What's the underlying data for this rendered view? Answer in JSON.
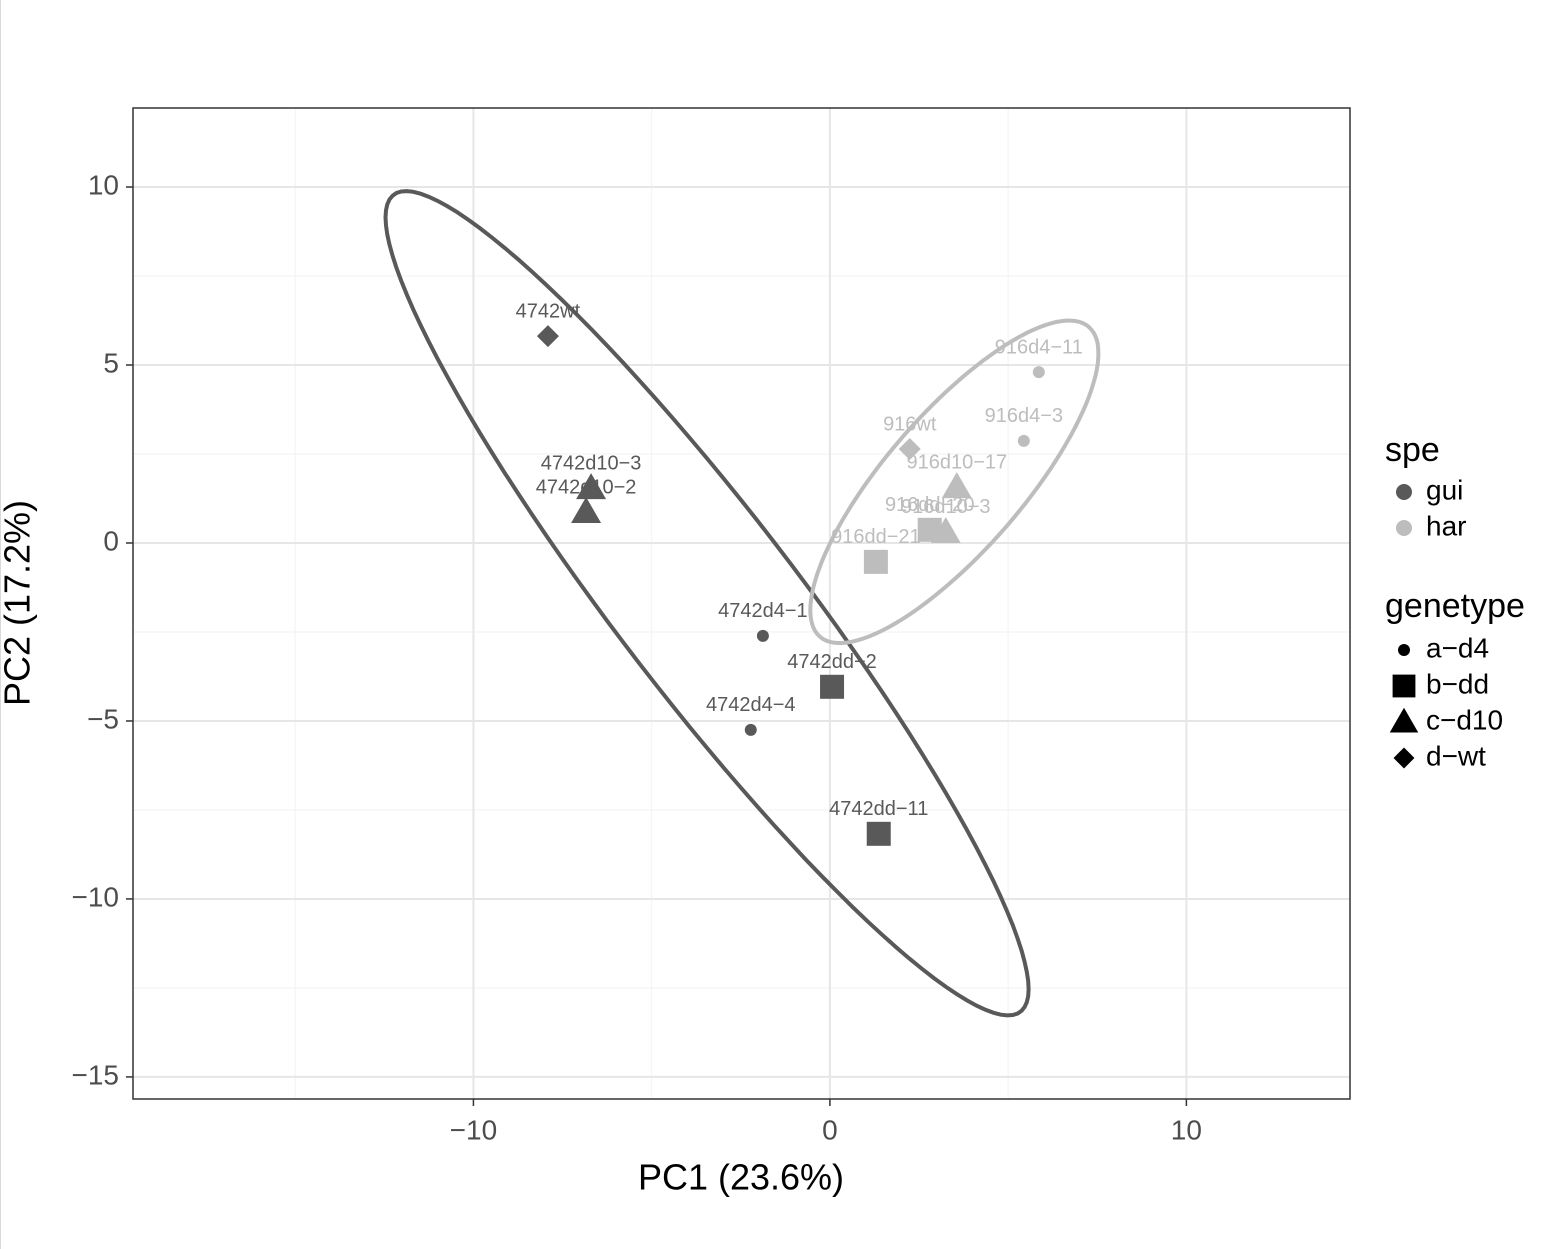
{
  "chart_data": {
    "type": "scatter",
    "x_label": "PC1 (23.6%)",
    "y_label": "PC2 (17.2%)",
    "xlim": [
      -19.55,
      14.59
    ],
    "ylim": [
      -15.62,
      12.22
    ],
    "xticks": [
      {
        "value": -10,
        "label": "−10"
      },
      0,
      10
    ],
    "yticks": [
      {
        "value": -15,
        "label": "−15"
      },
      {
        "value": -10,
        "label": "−10"
      },
      {
        "value": -5,
        "label": "−5"
      },
      0,
      5,
      10
    ],
    "grid": true,
    "ellipses": true,
    "legend_title": "spe",
    "shape_legend_title": "genetype",
    "genetypes": [
      {
        "name": "a−d4",
        "shape": "circle"
      },
      {
        "name": "b−dd",
        "shape": "square"
      },
      {
        "name": "c−d10",
        "shape": "triangle"
      },
      {
        "name": "d−wt",
        "shape": "diamond"
      }
    ],
    "series": [
      {
        "name": "gui",
        "color": "#595959",
        "points": [
          {
            "label": "4742wt",
            "x": -7.91,
            "y": 5.81,
            "genetype": "d−wt"
          },
          {
            "label": "4742d10−3",
            "x": -6.7,
            "y": 1.54,
            "genetype": "c−d10"
          },
          {
            "label": "4742d10−2",
            "x": -6.84,
            "y": 0.87,
            "genetype": "c−d10"
          },
          {
            "label": "4742d4−1",
            "x": -1.88,
            "y": -2.61,
            "genetype": "a−d4"
          },
          {
            "label": "4742dd−2",
            "x": 0.06,
            "y": -4.04,
            "genetype": "b−dd"
          },
          {
            "label": "4742d4−4",
            "x": -2.22,
            "y": -5.25,
            "genetype": "a−d4"
          },
          {
            "label": "4742dd−11",
            "x": 1.37,
            "y": -8.17,
            "genetype": "b−dd"
          }
        ]
      },
      {
        "name": "har",
        "color": "#bdbdbd",
        "points": [
          {
            "label": "916d4−11",
            "x": 5.86,
            "y": 4.8,
            "genetype": "a−d4"
          },
          {
            "label": "916d4−3",
            "x": 5.44,
            "y": 2.87,
            "genetype": "a−d4"
          },
          {
            "label": "916wt",
            "x": 2.24,
            "y": 2.64,
            "genetype": "d−wt"
          },
          {
            "label": "916d10−17",
            "x": 3.56,
            "y": 1.57,
            "genetype": "c−d10"
          },
          {
            "label": "916dd−20",
            "x": 2.8,
            "y": 0.37,
            "genetype": "b−dd"
          },
          {
            "label": "916d10−3",
            "x": 3.25,
            "y": 0.31,
            "genetype": "c−d10"
          },
          {
            "label": "916dd−21",
            "x": 1.29,
            "y": -0.53,
            "genetype": "b−dd"
          }
        ]
      }
    ]
  }
}
